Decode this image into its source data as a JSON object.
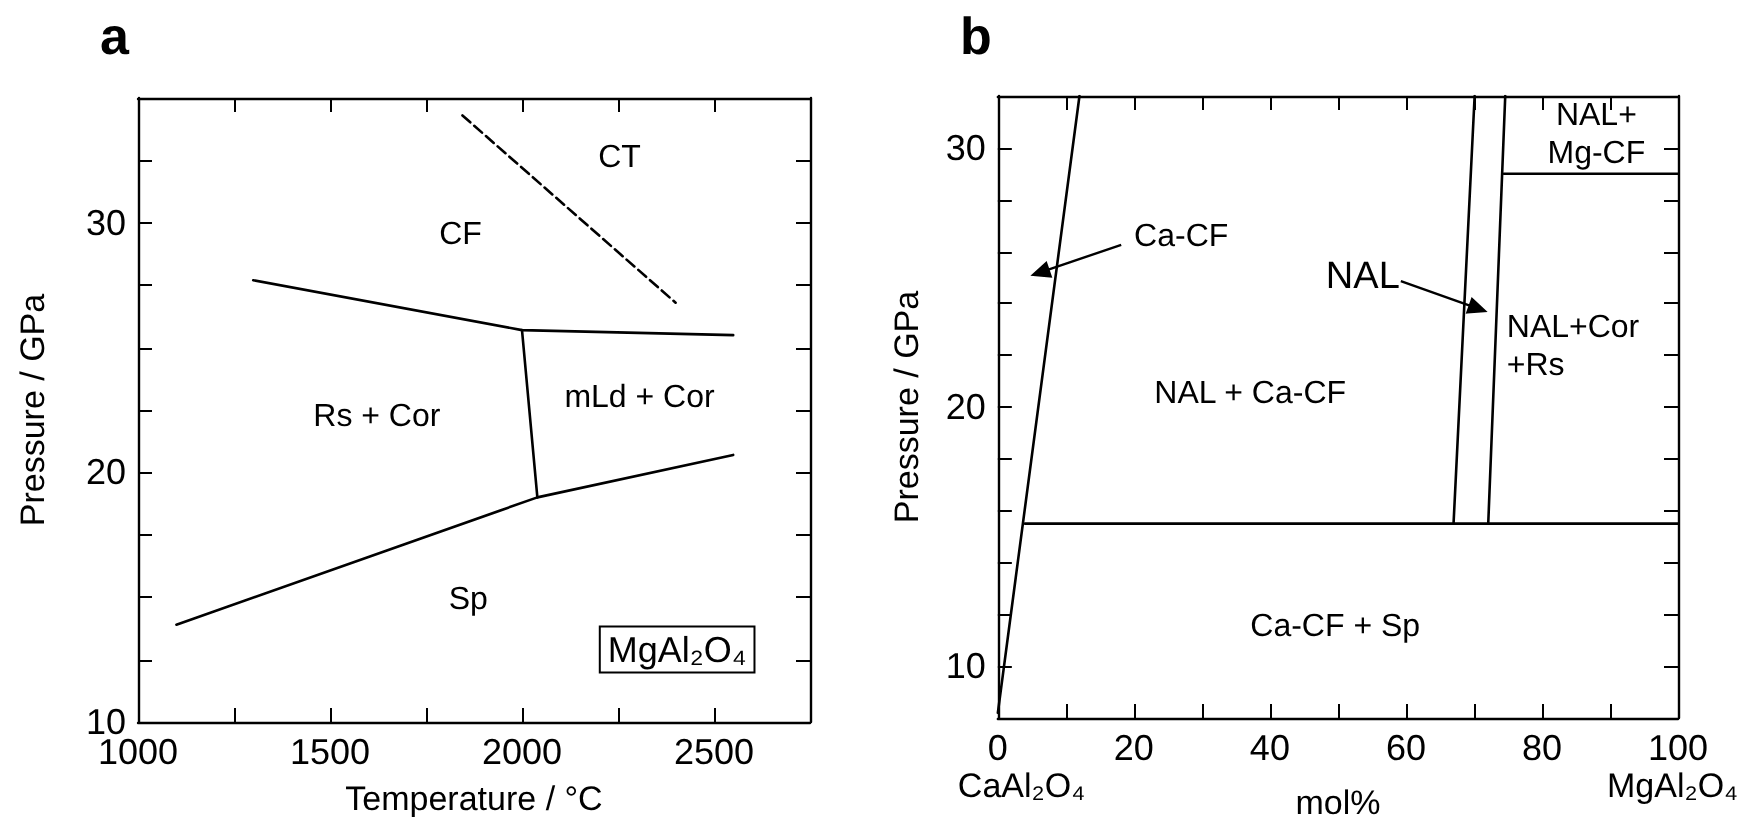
{
  "chart_data": [
    {
      "type": "line",
      "title": "a",
      "xlabel": "Temperature / °C",
      "ylabel": "Pressure / GPa",
      "xlim": [
        1000,
        2750
      ],
      "ylim": [
        10,
        35
      ],
      "marker": "none",
      "xticks": [
        1000,
        {
          "value": 1250,
          "label": null
        },
        1500,
        {
          "value": 1750,
          "label": null
        },
        2000,
        {
          "value": 2250,
          "label": null
        },
        2500
      ],
      "yticks": [
        10,
        {
          "value": 12.5,
          "label": null
        },
        {
          "value": 15,
          "label": null
        },
        {
          "value": 17.5,
          "label": null
        },
        20,
        {
          "value": 22.5,
          "label": null
        },
        {
          "value": 25,
          "label": null
        },
        {
          "value": 27.5,
          "label": null
        },
        30,
        {
          "value": 32.5,
          "label": null
        }
      ],
      "series": [
        {
          "color": "#000000",
          "line_style": "solid",
          "x": [
            1100,
            2040,
            2550
          ],
          "values": [
            13.9,
            19.0,
            20.7
          ]
        },
        {
          "color": "#000000",
          "line_style": "solid",
          "x": [
            1300,
            2000,
            2550
          ],
          "values": [
            27.7,
            25.7,
            25.5
          ]
        },
        {
          "color": "#000000",
          "line_style": "solid",
          "x": [
            2000,
            2040
          ],
          "values": [
            25.7,
            19.0
          ]
        },
        {
          "color": "#000000",
          "line_style": "dashed",
          "x": [
            1845,
            2400
          ],
          "values": [
            34.3,
            26.8
          ]
        }
      ],
      "annotations": [
        "CT",
        "CF",
        "Rs + Cor",
        "mLd + Cor",
        "Sp",
        "MgAl₂O₄"
      ]
    },
    {
      "type": "line",
      "title": "b",
      "xlabel": "mol%",
      "ylabel": "Pressure / GPa",
      "xlim": [
        0,
        100
      ],
      "ylim": [
        8,
        32
      ],
      "marker": "none",
      "xticks": [
        0,
        {
          "value": 10,
          "label": null
        },
        20,
        {
          "value": 30,
          "label": null
        },
        40,
        {
          "value": 50,
          "label": null
        },
        60,
        {
          "value": 70,
          "label": null
        },
        80,
        {
          "value": 90,
          "label": null
        },
        100
      ],
      "yticks": [
        10,
        {
          "value": 12,
          "label": null
        },
        {
          "value": 14,
          "label": null
        },
        {
          "value": 16,
          "label": null
        },
        {
          "value": 18,
          "label": null
        },
        20,
        {
          "value": 22,
          "label": null
        },
        {
          "value": 24,
          "label": null
        },
        {
          "value": 26,
          "label": null
        },
        {
          "value": 28,
          "label": null
        },
        30
      ],
      "series": [
        {
          "color": "#000000",
          "line_style": "solid",
          "x": [
            0,
            12
          ],
          "values": [
            8.2,
            32
          ]
        },
        {
          "color": "#000000",
          "line_style": "solid",
          "x": [
            4,
            100
          ],
          "values": [
            15.5,
            15.5
          ]
        },
        {
          "color": "#000000",
          "line_style": "solid",
          "x": [
            67,
            70.1
          ],
          "values": [
            15.5,
            32
          ]
        },
        {
          "color": "#000000",
          "line_style": "solid",
          "x": [
            72.1,
            74.6
          ],
          "values": [
            15.5,
            32
          ]
        },
        {
          "color": "#000000",
          "line_style": "solid",
          "x": [
            74.4,
            100
          ],
          "values": [
            29,
            29
          ]
        }
      ],
      "annotations": [
        "Ca-CF",
        "NAL",
        "NAL + Ca-CF",
        "NAL+\nMg-CF",
        "NAL+Cor\n+Rs",
        "Ca-CF + Sp",
        "CaAl₂O₄",
        "MgAl₂O₄"
      ]
    }
  ]
}
